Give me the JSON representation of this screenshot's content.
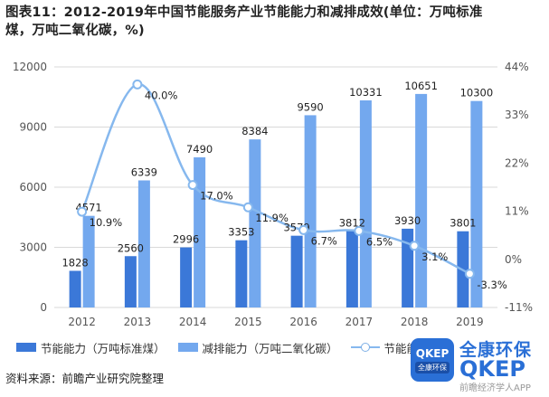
{
  "title": "图表11：2012-2019年中国节能服务产业节能能力和减排成效(单位：万吨标准\n煤，万吨二氧化碳，%)",
  "source": "资料来源：前瞻产业研究院整理",
  "watermark": {
    "badge_top": "QKEP",
    "badge_bottom": "全康环保",
    "cn": "全康环保",
    "en": "QKEP",
    "app": "前瞻经济学人APP"
  },
  "colors": {
    "bar1": "#3b78d8",
    "bar2": "#73a8ee",
    "line": "#86b8ee",
    "grid": "#d9d9d9",
    "axis_text": "#555555"
  },
  "chart_data": {
    "type": "bar",
    "categories": [
      "2012",
      "2013",
      "2014",
      "2015",
      "2016",
      "2017",
      "2018",
      "2019"
    ],
    "series": [
      {
        "name": "节能能力（万吨标准煤）",
        "type": "bar",
        "axis": "left",
        "values": [
          1828,
          2560,
          2996,
          3353,
          3579,
          3812,
          3930,
          3801
        ],
        "labels": [
          "1828",
          "2560",
          "2996",
          "3353",
          "3579",
          "3812",
          "3930",
          "3801"
        ]
      },
      {
        "name": "减排能力（万吨二氧化碳）",
        "type": "bar",
        "axis": "left",
        "values": [
          4571,
          6339,
          7490,
          8384,
          9590,
          10331,
          10651,
          10300
        ],
        "labels": [
          "4571",
          "6339",
          "7490",
          "8384",
          "9590",
          "10331",
          "10651",
          "10300"
        ]
      },
      {
        "name": "节能能力增速",
        "type": "line",
        "axis": "right",
        "values": [
          10.9,
          40.0,
          17.0,
          11.9,
          6.7,
          6.5,
          3.1,
          -3.3
        ],
        "labels": [
          "10.9%",
          "40.0%",
          "17.0%",
          "11.9%",
          "6.7%",
          "6.5%",
          "3.1%",
          "-3.3%"
        ]
      }
    ],
    "y_left": {
      "ticks": [
        0,
        3000,
        6000,
        9000,
        12000
      ],
      "tick_labels": [
        "0",
        "3000",
        "6000",
        "9000",
        "12000"
      ],
      "range": [
        0,
        12000
      ]
    },
    "y_right": {
      "ticks": [
        -11,
        0,
        11,
        22,
        33,
        44
      ],
      "tick_labels": [
        "-11%",
        "0%",
        "11%",
        "22%",
        "33%",
        "44%"
      ],
      "range": [
        -11,
        44
      ]
    },
    "grid": true,
    "legend_position": "bottom"
  },
  "legend": [
    {
      "label": "节能能力（万吨标准煤）",
      "kind": "bar",
      "color_key": "bar1"
    },
    {
      "label": "减排能力（万吨二氧化碳）",
      "kind": "bar",
      "color_key": "bar2"
    },
    {
      "label": "节能能力增速",
      "kind": "line",
      "color_key": "line"
    }
  ]
}
